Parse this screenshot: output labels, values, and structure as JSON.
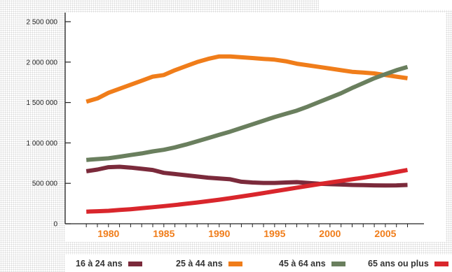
{
  "chart_data": {
    "type": "line",
    "title": "",
    "xlabel": "",
    "ylabel": "",
    "xlim": [
      1977.8,
      2007.6
    ],
    "ylim": [
      0,
      2500000
    ],
    "y_ticks": [
      0,
      500000,
      1000000,
      1500000,
      2000000,
      2500000
    ],
    "y_tick_labels": [
      "0",
      "500 000",
      "1 000 000",
      "1 500 000",
      "2 000 000",
      "2 500 000"
    ],
    "x_ticks": [
      1980,
      1985,
      1990,
      1995,
      2000,
      2005
    ],
    "x_tick_labels": [
      "1980",
      "1985",
      "1990",
      "1995",
      "2000",
      "2005"
    ],
    "x_tick_color": "#f07d1a",
    "grid": false,
    "legend_position": "bottom",
    "x": [
      1978,
      1979,
      1980,
      1981,
      1982,
      1983,
      1984,
      1985,
      1986,
      1987,
      1988,
      1989,
      1990,
      1991,
      1992,
      1993,
      1994,
      1995,
      1996,
      1997,
      1998,
      1999,
      2000,
      2001,
      2002,
      2003,
      2004,
      2005,
      2006,
      2007
    ],
    "series": [
      {
        "name": "16 à 24 ans",
        "color": "#7b2a3b",
        "values": [
          650000,
          670000,
          700000,
          705000,
          695000,
          680000,
          665000,
          630000,
          615000,
          600000,
          585000,
          570000,
          560000,
          550000,
          520000,
          510000,
          505000,
          505000,
          510000,
          515000,
          505000,
          495000,
          490000,
          485000,
          480000,
          478000,
          475000,
          474000,
          475000,
          480000
        ]
      },
      {
        "name": "25 à 44 ans",
        "color": "#f07d1a",
        "values": [
          1510000,
          1550000,
          1620000,
          1670000,
          1720000,
          1770000,
          1820000,
          1840000,
          1900000,
          1950000,
          2000000,
          2040000,
          2070000,
          2070000,
          2060000,
          2050000,
          2040000,
          2030000,
          2010000,
          1980000,
          1960000,
          1940000,
          1920000,
          1900000,
          1880000,
          1870000,
          1860000,
          1840000,
          1820000,
          1800000
        ]
      },
      {
        "name": "45 à 64 ans",
        "color": "#6a7f5e",
        "values": [
          790000,
          800000,
          810000,
          830000,
          850000,
          870000,
          895000,
          915000,
          945000,
          980000,
          1020000,
          1060000,
          1100000,
          1140000,
          1185000,
          1230000,
          1275000,
          1320000,
          1360000,
          1400000,
          1450000,
          1505000,
          1560000,
          1615000,
          1680000,
          1740000,
          1800000,
          1850000,
          1900000,
          1940000
        ]
      },
      {
        "name": "65 ans ou plus",
        "color": "#d9262c",
        "values": [
          150000,
          155000,
          160000,
          170000,
          180000,
          192000,
          205000,
          218000,
          232000,
          247000,
          263000,
          280000,
          298000,
          317000,
          337000,
          358000,
          380000,
          402000,
          424000,
          446000,
          468000,
          490000,
          510000,
          530000,
          550000,
          570000,
          592000,
          615000,
          640000,
          665000
        ]
      }
    ]
  }
}
